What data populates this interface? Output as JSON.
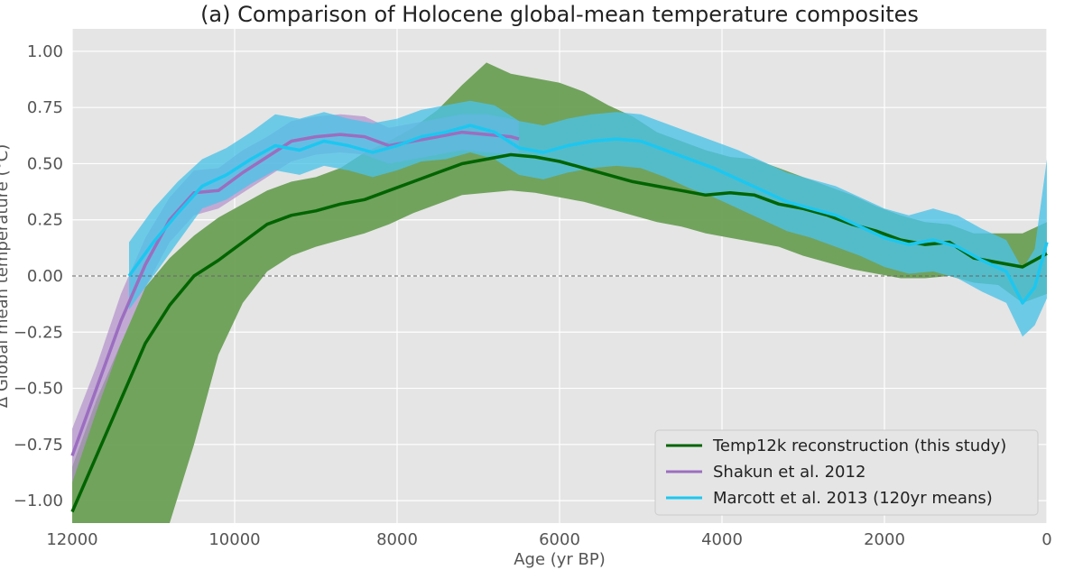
{
  "chart_data": {
    "type": "line",
    "title": "(a) Comparison of Holocene global-mean temperature composites",
    "xlabel": "Age (yr BP)",
    "ylabel": "Δ Global mean temperature (°C)",
    "xlim": [
      12000,
      0
    ],
    "ylim": [
      -1.1,
      1.1
    ],
    "x_ticks": [
      "12000",
      "10000",
      "8000",
      "6000",
      "4000",
      "2000",
      "0"
    ],
    "x_tick_values": [
      12000,
      10000,
      8000,
      6000,
      4000,
      2000,
      0
    ],
    "y_ticks": [
      "1.00",
      "0.75",
      "0.50",
      "0.25",
      "0.00",
      "−0.25",
      "−0.50",
      "−0.75",
      "−1.00"
    ],
    "y_tick_values": [
      1.0,
      0.75,
      0.5,
      0.25,
      0.0,
      -0.25,
      -0.5,
      -0.75,
      -1.0
    ],
    "grid": true,
    "reference_line": 0.0,
    "legend_position": "lower-right",
    "series": [
      {
        "name": "Temp12k reconstruction (this study)",
        "color": "#006400",
        "band_color": "#6a9f55",
        "x": [
          12000,
          11700,
          11400,
          11100,
          10800,
          10500,
          10200,
          9900,
          9600,
          9300,
          9000,
          8700,
          8400,
          8100,
          7800,
          7500,
          7200,
          6900,
          6600,
          6300,
          6000,
          5700,
          5400,
          5100,
          4800,
          4500,
          4200,
          3900,
          3600,
          3300,
          3000,
          2700,
          2400,
          2100,
          1800,
          1500,
          1200,
          900,
          600,
          300,
          0
        ],
        "y": [
          -1.05,
          -0.8,
          -0.55,
          -0.3,
          -0.13,
          0.0,
          0.07,
          0.15,
          0.23,
          0.27,
          0.29,
          0.32,
          0.34,
          0.38,
          0.42,
          0.46,
          0.5,
          0.52,
          0.54,
          0.53,
          0.51,
          0.48,
          0.45,
          0.42,
          0.4,
          0.38,
          0.36,
          0.37,
          0.36,
          0.32,
          0.3,
          0.27,
          0.23,
          0.2,
          0.16,
          0.14,
          0.15,
          0.08,
          0.06,
          0.04,
          0.1
        ],
        "lower": [
          -1.3,
          -1.3,
          -1.3,
          -1.3,
          -1.1,
          -0.75,
          -0.35,
          -0.12,
          0.02,
          0.09,
          0.13,
          0.16,
          0.19,
          0.23,
          0.28,
          0.32,
          0.36,
          0.37,
          0.38,
          0.37,
          0.35,
          0.33,
          0.3,
          0.27,
          0.24,
          0.22,
          0.19,
          0.17,
          0.15,
          0.13,
          0.09,
          0.06,
          0.03,
          0.01,
          -0.01,
          -0.01,
          0.0,
          -0.03,
          -0.04,
          -0.12,
          -0.08
        ],
        "upper": [
          -0.85,
          -0.55,
          -0.3,
          -0.05,
          0.08,
          0.18,
          0.26,
          0.32,
          0.38,
          0.42,
          0.44,
          0.48,
          0.55,
          0.6,
          0.66,
          0.74,
          0.85,
          0.95,
          0.9,
          0.88,
          0.86,
          0.82,
          0.76,
          0.71,
          0.64,
          0.6,
          0.56,
          0.53,
          0.52,
          0.48,
          0.44,
          0.4,
          0.36,
          0.31,
          0.27,
          0.24,
          0.23,
          0.19,
          0.19,
          0.19,
          0.24
        ]
      },
      {
        "name": "Shakun et al. 2012",
        "color": "#9b6ec0",
        "band_color": "#b492cc",
        "x": [
          12000,
          11700,
          11400,
          11100,
          10800,
          10500,
          10200,
          9900,
          9600,
          9300,
          9000,
          8700,
          8400,
          8100,
          7800,
          7500,
          7200,
          6900,
          6600,
          6500
        ],
        "y": [
          -0.8,
          -0.5,
          -0.2,
          0.05,
          0.25,
          0.37,
          0.38,
          0.46,
          0.53,
          0.6,
          0.62,
          0.63,
          0.62,
          0.58,
          0.6,
          0.62,
          0.64,
          0.63,
          0.62,
          0.61
        ],
        "lower": [
          -0.92,
          -0.6,
          -0.3,
          -0.05,
          0.15,
          0.27,
          0.3,
          0.37,
          0.44,
          0.51,
          0.54,
          0.55,
          0.54,
          0.5,
          0.52,
          0.54,
          0.56,
          0.55,
          0.54,
          0.53
        ],
        "upper": [
          -0.68,
          -0.4,
          -0.08,
          0.17,
          0.35,
          0.47,
          0.48,
          0.56,
          0.62,
          0.69,
          0.71,
          0.72,
          0.71,
          0.66,
          0.68,
          0.7,
          0.72,
          0.72,
          0.7,
          0.69
        ]
      },
      {
        "name": "Marcott et al. 2013 (120yr means)",
        "color": "#1cc7f0",
        "band_color": "#4cc3e8",
        "x": [
          11300,
          11000,
          10700,
          10400,
          10100,
          9800,
          9500,
          9200,
          8900,
          8600,
          8300,
          8000,
          7700,
          7400,
          7100,
          6800,
          6500,
          6200,
          5900,
          5600,
          5300,
          5000,
          4700,
          4400,
          4100,
          3800,
          3500,
          3200,
          2900,
          2600,
          2300,
          2000,
          1700,
          1400,
          1100,
          800,
          500,
          300,
          150,
          0
        ],
        "y": [
          0.0,
          0.15,
          0.28,
          0.4,
          0.45,
          0.52,
          0.58,
          0.56,
          0.6,
          0.58,
          0.55,
          0.58,
          0.62,
          0.64,
          0.67,
          0.64,
          0.57,
          0.55,
          0.58,
          0.6,
          0.61,
          0.6,
          0.56,
          0.52,
          0.48,
          0.43,
          0.38,
          0.33,
          0.3,
          0.27,
          0.22,
          0.17,
          0.14,
          0.16,
          0.13,
          0.07,
          0.02,
          -0.12,
          -0.05,
          0.15
        ],
        "lower": [
          -0.15,
          0.0,
          0.15,
          0.3,
          0.34,
          0.41,
          0.47,
          0.45,
          0.49,
          0.47,
          0.44,
          0.47,
          0.51,
          0.52,
          0.55,
          0.52,
          0.45,
          0.43,
          0.46,
          0.48,
          0.49,
          0.48,
          0.44,
          0.39,
          0.35,
          0.3,
          0.25,
          0.2,
          0.17,
          0.13,
          0.09,
          0.04,
          0.01,
          0.02,
          -0.01,
          -0.07,
          -0.12,
          -0.27,
          -0.22,
          -0.1
        ],
        "upper": [
          0.15,
          0.3,
          0.42,
          0.52,
          0.57,
          0.64,
          0.72,
          0.7,
          0.73,
          0.7,
          0.68,
          0.7,
          0.74,
          0.76,
          0.78,
          0.76,
          0.69,
          0.67,
          0.7,
          0.72,
          0.73,
          0.72,
          0.68,
          0.64,
          0.6,
          0.56,
          0.51,
          0.46,
          0.43,
          0.4,
          0.35,
          0.3,
          0.27,
          0.3,
          0.27,
          0.21,
          0.16,
          0.03,
          0.12,
          0.52
        ]
      }
    ]
  }
}
